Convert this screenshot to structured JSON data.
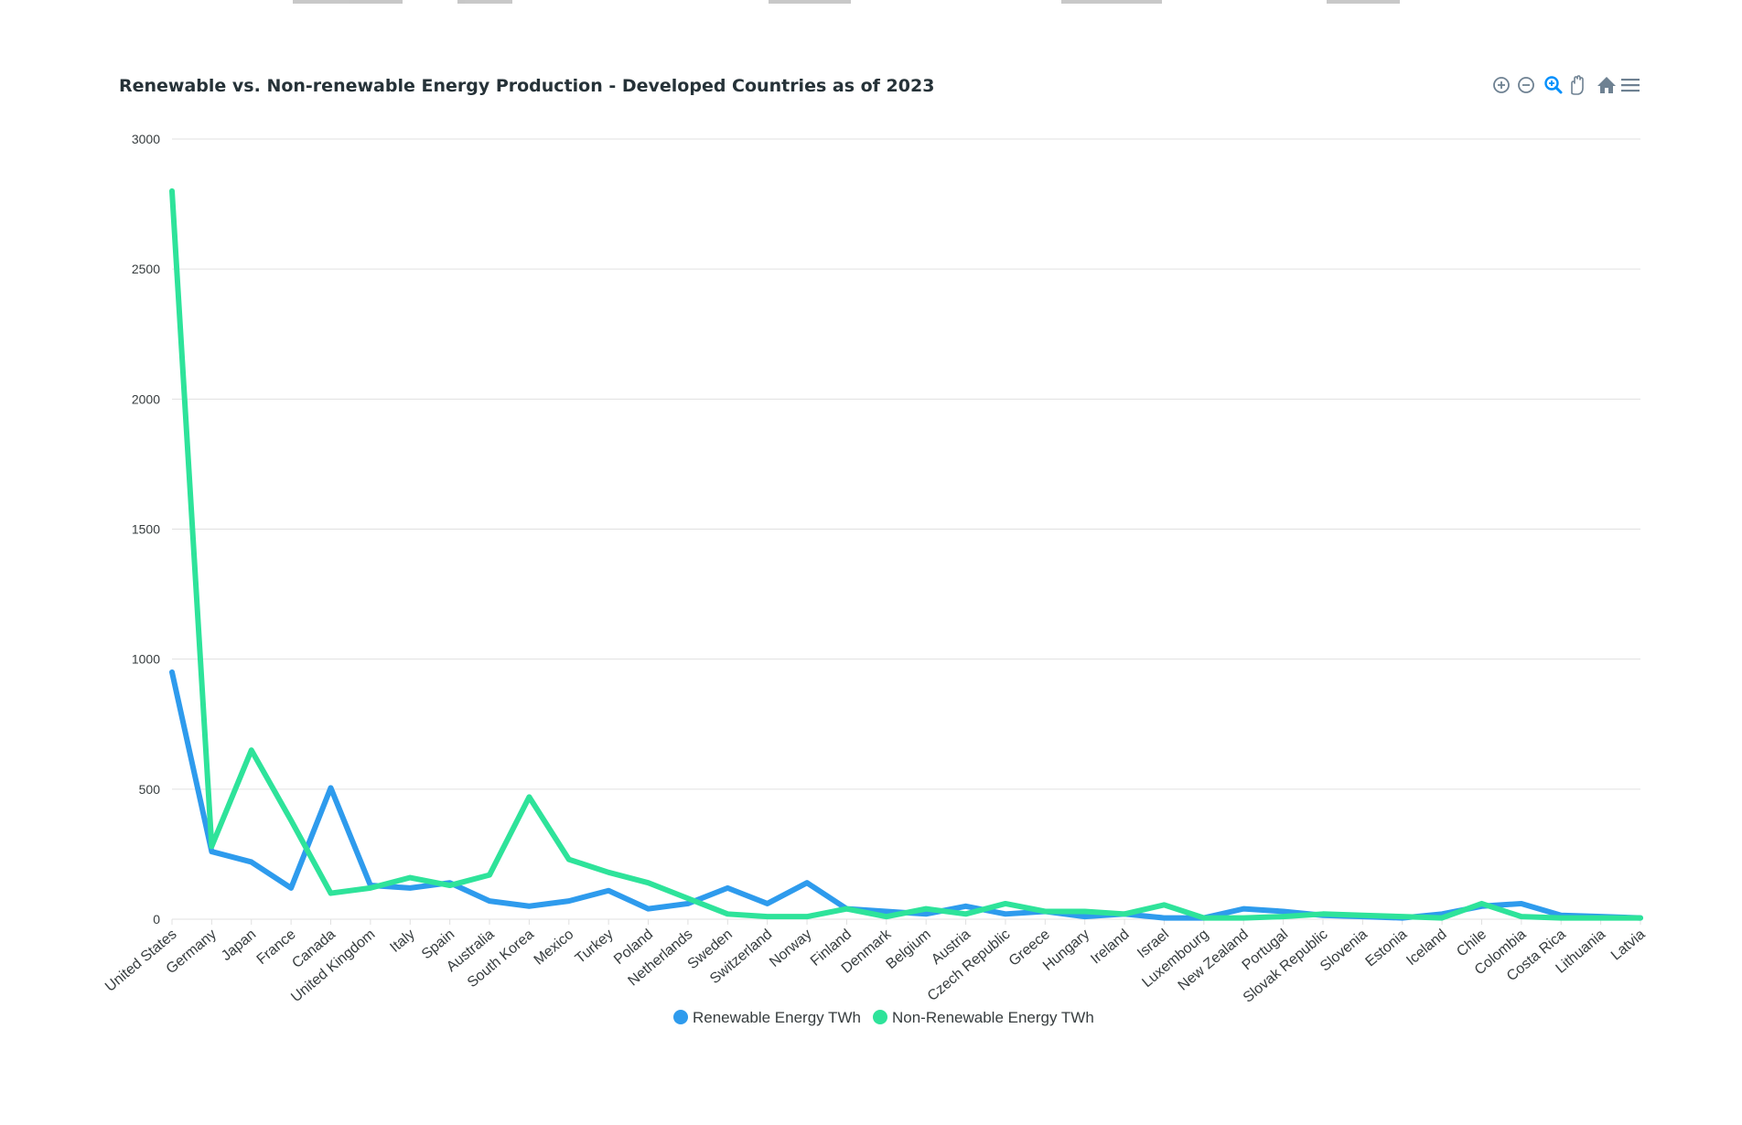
{
  "colors": {
    "renewable": "#2e9bed",
    "non_renewable": "#2ee39a",
    "toolbar": "#6e8192",
    "toolbar_active": "#008ffb"
  },
  "toolbar": {
    "icons": [
      "zoom-in-icon",
      "zoom-out-icon",
      "zoom-selection-icon",
      "pan-hand-icon",
      "home-reset-icon",
      "menu-icon"
    ]
  },
  "chart_data": {
    "type": "line",
    "title": "Renewable vs. Non-renewable Energy Production - Developed Countries as of 2023",
    "xlabel": "",
    "ylabel": "",
    "ylim": [
      0,
      3000
    ],
    "yticks": [
      "0",
      "500",
      "1000",
      "1500",
      "2000",
      "2500",
      "3000"
    ],
    "grid": true,
    "legend_position": "bottom-center",
    "categories": [
      "United States",
      "Germany",
      "Japan",
      "France",
      "Canada",
      "United Kingdom",
      "Italy",
      "Spain",
      "Australia",
      "South Korea",
      "Mexico",
      "Turkey",
      "Poland",
      "Netherlands",
      "Sweden",
      "Switzerland",
      "Norway",
      "Finland",
      "Denmark",
      "Belgium",
      "Austria",
      "Czech Republic",
      "Greece",
      "Hungary",
      "Ireland",
      "Israel",
      "Luxembourg",
      "New Zealand",
      "Portugal",
      "Slovak Republic",
      "Slovenia",
      "Estonia",
      "Iceland",
      "Chile",
      "Colombia",
      "Costa Rica",
      "Lithuania",
      "Latvia"
    ],
    "series": [
      {
        "name": "Renewable Energy TWh",
        "values": [
          950,
          260,
          220,
          120,
          505,
          130,
          120,
          140,
          70,
          50,
          70,
          110,
          40,
          60,
          120,
          60,
          140,
          40,
          30,
          20,
          50,
          20,
          30,
          10,
          20,
          5,
          5,
          40,
          30,
          15,
          10,
          5,
          20,
          50,
          60,
          15,
          10,
          5
        ]
      },
      {
        "name": "Non-Renewable Energy TWh",
        "values": [
          2800,
          280,
          650,
          380,
          100,
          120,
          160,
          130,
          170,
          470,
          230,
          180,
          140,
          80,
          20,
          10,
          10,
          40,
          10,
          40,
          20,
          60,
          30,
          30,
          20,
          55,
          5,
          5,
          10,
          20,
          15,
          10,
          5,
          60,
          10,
          5,
          5,
          5
        ]
      }
    ]
  }
}
